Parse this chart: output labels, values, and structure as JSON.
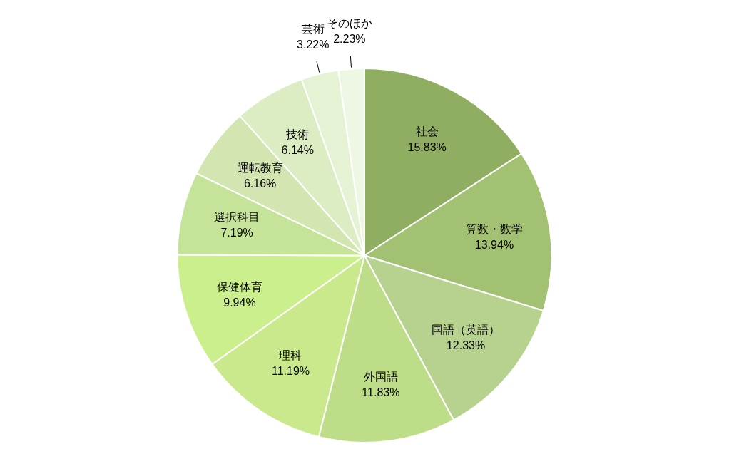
{
  "chart_data": {
    "type": "pie",
    "categories": [
      "社会",
      "算数・数学",
      "国語（英語）",
      "外国語",
      "理科",
      "保健体育",
      "選択科目",
      "運転教育",
      "技術",
      "芸術",
      "そのほか"
    ],
    "values": [
      15.83,
      13.94,
      12.33,
      11.83,
      11.19,
      9.94,
      7.19,
      6.16,
      6.14,
      3.22,
      2.23
    ],
    "value_labels": [
      "15.83%",
      "13.94%",
      "12.33%",
      "11.83%",
      "11.19%",
      "9.94%",
      "7.19%",
      "6.16%",
      "6.14%",
      "3.22%",
      "2.23%"
    ],
    "colors": [
      "#8fae62",
      "#a3c172",
      "#b7d28e",
      "#bedd88",
      "#c9e98c",
      "#ccef8e",
      "#c6e39a",
      "#d3e6b2",
      "#dcedc4",
      "#e6f2d4",
      "#eef6e4"
    ],
    "legend": false
  }
}
